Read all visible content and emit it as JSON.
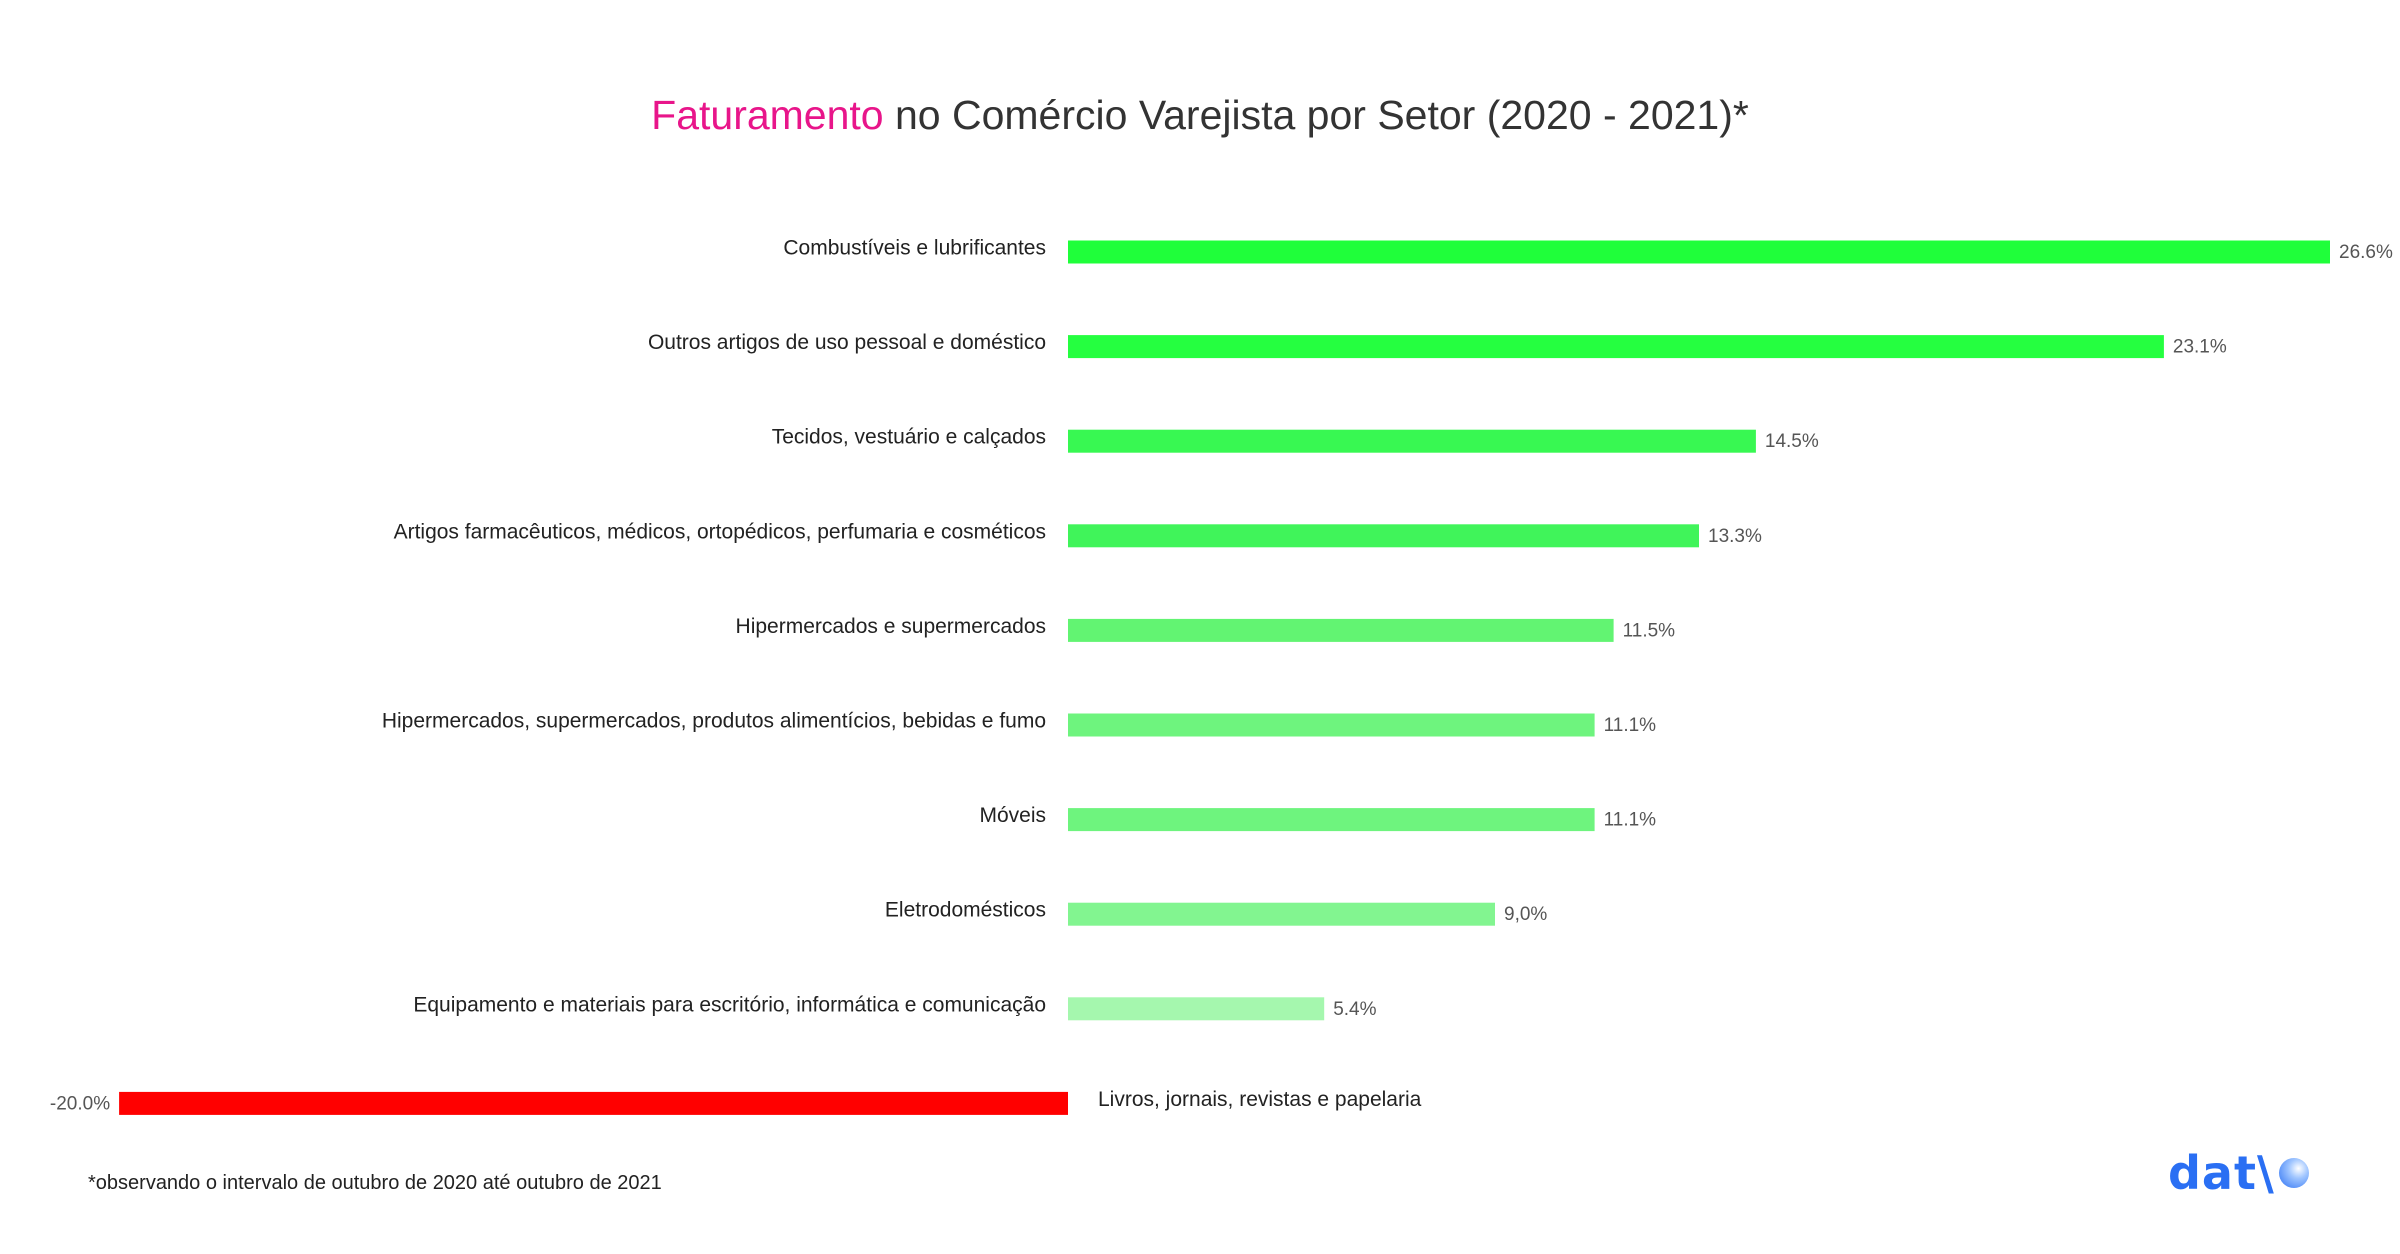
{
  "title": {
    "accent": "Faturamento",
    "rest": " no Comércio Varejista por Setor (2020 - 2021)*",
    "accent_color": "#e8158a"
  },
  "footnote": "*observando o intervalo de outubro de 2020 até outubro de 2021",
  "logo": {
    "text": "dat\\",
    "color": "#2a6ff3"
  },
  "chart_data": {
    "type": "bar",
    "orientation": "horizontal",
    "title": "Faturamento no Comércio Varejista por Setor (2020 - 2021)*",
    "xlabel": "",
    "ylabel": "",
    "xlim": [
      -20.0,
      26.6
    ],
    "grid": false,
    "categories": [
      "Combustíveis e lubrificantes",
      "Outros artigos de uso pessoal e doméstico",
      "Tecidos, vestuário e calçados",
      "Artigos farmacêuticos, médicos, ortopédicos, perfumaria e cosméticos",
      "Hipermercados e supermercados",
      "Hipermercados, supermercados, produtos alimentícios, bebidas e fumo",
      "Móveis",
      "Eletrodomésticos",
      "Equipamento e materiais para escritório, informática e comunicação",
      "Livros, jornais, revistas e papelaria"
    ],
    "values": [
      26.6,
      23.1,
      14.5,
      13.3,
      11.5,
      11.1,
      11.1,
      9.0,
      5.4,
      -20.0
    ],
    "value_labels": [
      "26.6%",
      "23.1%",
      "14.5%",
      "13.3%",
      "11.5%",
      "11.1%",
      "11.1%",
      "9,0%",
      "5.4%",
      "-20.0%"
    ],
    "colors": [
      "#1fff3a",
      "#25ff40",
      "#38f852",
      "#40f45a",
      "#62f472",
      "#6ef47e",
      "#6ef47e",
      "#82f590",
      "#a5f7ae",
      "#ff0000"
    ]
  }
}
